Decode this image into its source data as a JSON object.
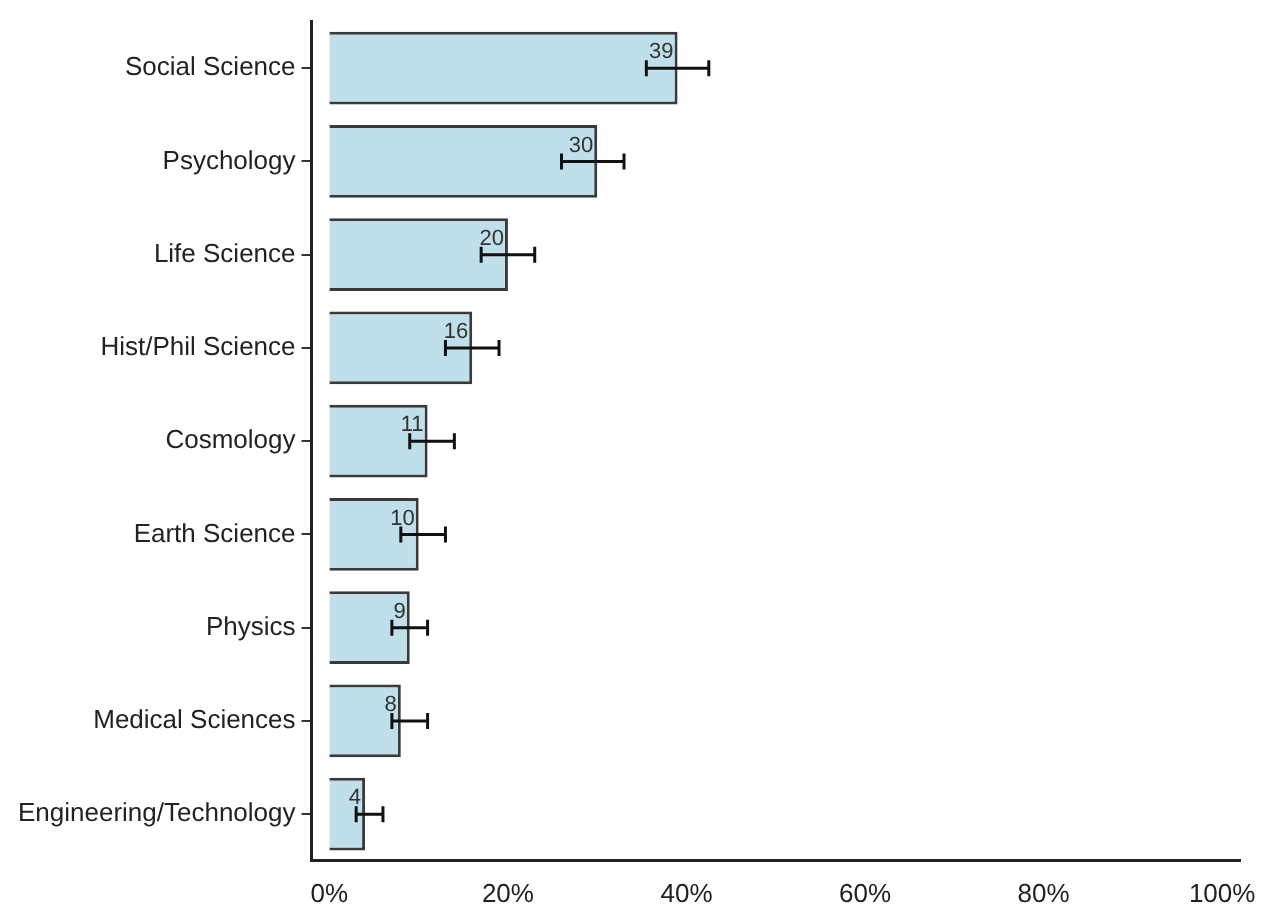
{
  "chart_data": {
    "type": "bar",
    "orientation": "horizontal",
    "categories": [
      "Social Science",
      "Psychology",
      "Life Science",
      "Hist/Phil Science",
      "Cosmology",
      "Earth Science",
      "Physics",
      "Medical Sciences",
      "Engineering/Technology"
    ],
    "values": [
      39,
      30,
      20,
      16,
      11,
      10,
      9,
      8,
      4
    ],
    "errors": [
      [
        35.5,
        42.5
      ],
      [
        26,
        33
      ],
      [
        17,
        23
      ],
      [
        13,
        19
      ],
      [
        9,
        14
      ],
      [
        8,
        13
      ],
      [
        7,
        11
      ],
      [
        7,
        11
      ],
      [
        3,
        6
      ]
    ],
    "color": "#bfe0ea",
    "data_labels": true,
    "grid": false,
    "legend": false,
    "xlim": [
      -2,
      102
    ],
    "xticks": [
      {
        "value": 0,
        "label": "0%"
      },
      {
        "value": 20,
        "label": "20%"
      },
      {
        "value": 40,
        "label": "40%"
      },
      {
        "value": 60,
        "label": "60%"
      },
      {
        "value": 80,
        "label": "80%"
      },
      {
        "value": 100,
        "label": "100%"
      }
    ]
  }
}
